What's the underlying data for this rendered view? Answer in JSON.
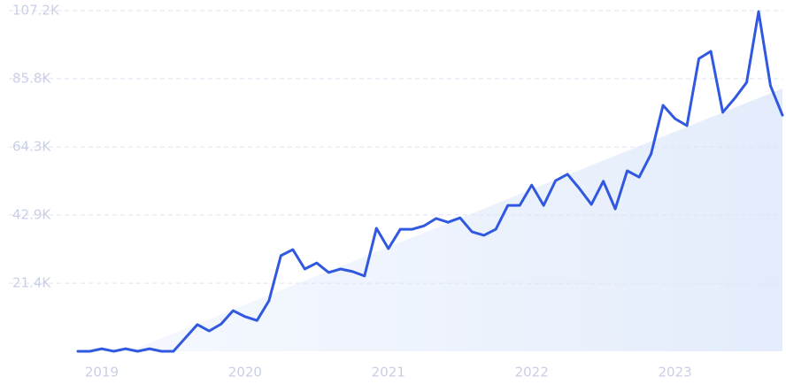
{
  "chart_data": {
    "type": "line",
    "categories": [
      null,
      null,
      "2019",
      null,
      null,
      null,
      null,
      null,
      null,
      null,
      null,
      null,
      null,
      null,
      "2020",
      null,
      null,
      null,
      null,
      null,
      null,
      null,
      null,
      null,
      null,
      null,
      "2021",
      null,
      null,
      null,
      null,
      null,
      null,
      null,
      null,
      null,
      null,
      null,
      "2022",
      null,
      null,
      null,
      null,
      null,
      null,
      null,
      null,
      null,
      null,
      null,
      "2023",
      null,
      null,
      null,
      null,
      null,
      null,
      null,
      null,
      null
    ],
    "series": [
      {
        "color": "#3159e0",
        "values": [
          0,
          0,
          800,
          0,
          800,
          0,
          800,
          0,
          0,
          4200,
          8400,
          6400,
          8600,
          12800,
          10900,
          9700,
          15900,
          30100,
          32000,
          25900,
          27800,
          24800,
          25900,
          25100,
          23700,
          38700,
          32300,
          38400,
          38400,
          39500,
          41800,
          40600,
          42000,
          37600,
          36500,
          38400,
          45900,
          45900,
          52300,
          45900,
          53700,
          55700,
          51200,
          46200,
          53500,
          44800,
          56800,
          54800,
          62100,
          77400,
          73200,
          71000,
          92100,
          94400,
          75200,
          79600,
          84600,
          106900,
          83500,
          74300
        ]
      }
    ],
    "trend_line": {
      "start_index": 5,
      "values": [
        1100,
        82700
      ]
    },
    "ylim": [
      0,
      107200
    ],
    "yticks": [
      {
        "value": 21400,
        "label": "21.4K"
      },
      {
        "value": 42900,
        "label": "42.9K"
      },
      {
        "value": 64300,
        "label": "64.3K"
      },
      {
        "value": 85800,
        "label": "85.8K"
      },
      {
        "value": 107200,
        "label": "107.2K"
      }
    ],
    "grid": true
  }
}
